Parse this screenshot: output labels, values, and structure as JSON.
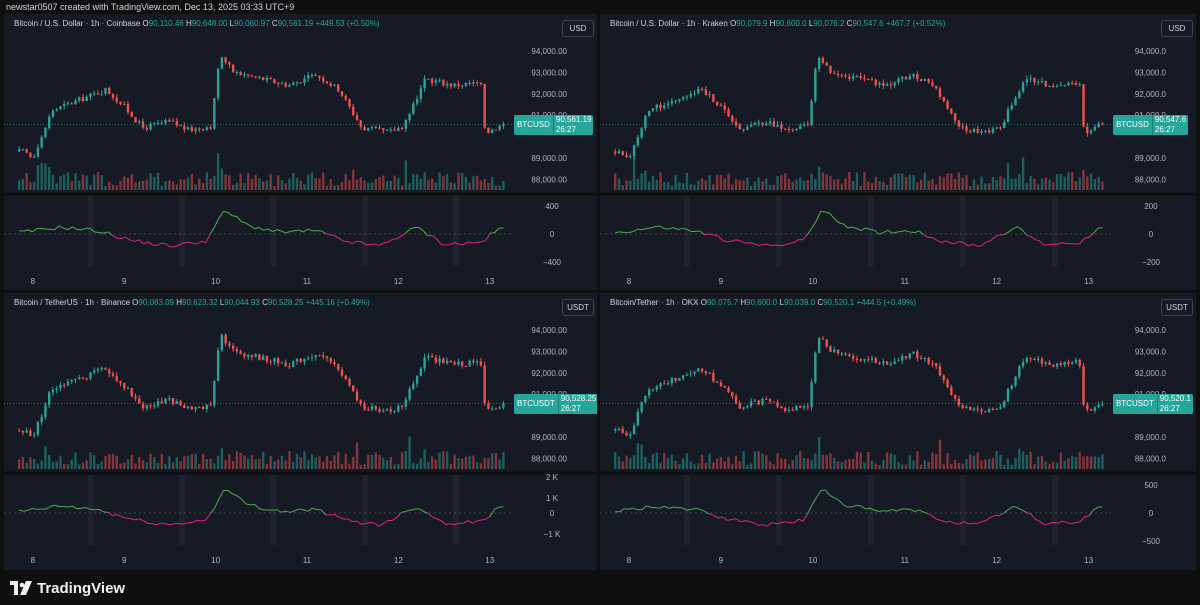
{
  "header": "newstar0507 created with TradingView.com, Dec 13, 2025 03:33 UTC+9",
  "footer": {
    "brand": "TradingView"
  },
  "colors": {
    "up": "#26a69a",
    "down": "#ef5350",
    "osc_pos": "#4caf50",
    "osc_neg": "#e91e8c",
    "background": "#161a25"
  },
  "x_axis_labels": [
    "8",
    "9",
    "10",
    "11",
    "12",
    "13"
  ],
  "panels": [
    {
      "title": "Bitcoin / U.S. Dollar · 1h · Coinbase",
      "ohlc": {
        "o_label": "O",
        "o": "90,110.46",
        "h_label": "H",
        "h": "90,648.00",
        "l_label": "L",
        "l": "90,060.97",
        "c_label": "C",
        "c": "90,561.19",
        "change": "+449.53 (+0.50%)"
      },
      "currency": "USD",
      "symbol": "BTCUSD",
      "last_price": "90,561.19",
      "countdown": "26:27",
      "price_axis": [
        "94,000.00",
        "93,000.00",
        "92,000.00",
        "91,000.00",
        "89,000.00",
        "88,000.00"
      ],
      "osc_axis": [
        "400",
        "0",
        "−400"
      ]
    },
    {
      "title": "Bitcoin / U.S. Dollar · 1h · Kraken",
      "ohlc": {
        "o_label": "O",
        "o": "90,079.9",
        "h_label": "H",
        "h": "90,600.0",
        "l_label": "L",
        "l": "90,076.2",
        "c_label": "C",
        "c": "90,547.6",
        "change": "+467.7 (+0.52%)"
      },
      "currency": "USD",
      "symbol": "BTCUSD",
      "last_price": "90,547.6",
      "countdown": "26:27",
      "price_axis": [
        "94,000.0",
        "93,000.0",
        "92,000.0",
        "91,000.0",
        "89,000.0",
        "88,000.0"
      ],
      "osc_axis": [
        "200",
        "0",
        "−200"
      ]
    },
    {
      "title": "Bitcoin / TetherUS · 1h · Binance",
      "ohlc": {
        "o_label": "O",
        "o": "90,083.09",
        "h_label": "H",
        "h": "90,623.32",
        "l_label": "L",
        "l": "90,044.93",
        "c_label": "C",
        "c": "90,528.25",
        "change": "+445.16 (+0.49%)"
      },
      "currency": "USDT",
      "symbol": "BTCUSDT",
      "last_price": "90,528.25",
      "countdown": "26:27",
      "price_axis": [
        "94,000.00",
        "93,000.00",
        "92,000.00",
        "91,000.00",
        "89,000.00",
        "88,000.00"
      ],
      "osc_axis": [
        "2 K",
        "1 K",
        "0",
        "−1 K"
      ]
    },
    {
      "title": "Bitcoin/Tether · 1h · OKX",
      "ohlc": {
        "o_label": "O",
        "o": "90,075.7",
        "h_label": "H",
        "h": "90,600.0",
        "l_label": "L",
        "l": "90,039.0",
        "c_label": "C",
        "c": "90,520.1",
        "change": "+444.5 (+0.49%)"
      },
      "currency": "USDT",
      "symbol": "BTCUSDT",
      "last_price": "90,520.1",
      "countdown": "26:27",
      "price_axis": [
        "94,000.0",
        "93,000.0",
        "92,000.0",
        "91,000.0",
        "89,000.0",
        "88,000.0"
      ],
      "osc_axis": [
        "500",
        "0",
        "−500"
      ]
    }
  ],
  "chart_data": {
    "type": "candlestick",
    "interval": "1h",
    "x_categories": [
      "8",
      "9",
      "10",
      "11",
      "12",
      "13"
    ],
    "price_ylim": [
      87500,
      94700
    ],
    "price_key_points": [
      {
        "day": 7.9,
        "price": 89300
      },
      {
        "day": 8.0,
        "price": 89000
      },
      {
        "day": 8.2,
        "price": 91200
      },
      {
        "day": 8.5,
        "price": 91700
      },
      {
        "day": 8.8,
        "price": 92200
      },
      {
        "day": 9.0,
        "price": 91400
      },
      {
        "day": 9.2,
        "price": 90400
      },
      {
        "day": 9.5,
        "price": 90700
      },
      {
        "day": 9.7,
        "price": 90300
      },
      {
        "day": 9.95,
        "price": 90500
      },
      {
        "day": 10.05,
        "price": 93800
      },
      {
        "day": 10.2,
        "price": 93000
      },
      {
        "day": 10.5,
        "price": 92700
      },
      {
        "day": 10.8,
        "price": 92400
      },
      {
        "day": 11.1,
        "price": 92900
      },
      {
        "day": 11.35,
        "price": 92200
      },
      {
        "day": 11.6,
        "price": 90400
      },
      {
        "day": 11.9,
        "price": 90200
      },
      {
        "day": 12.05,
        "price": 90500
      },
      {
        "day": 12.3,
        "price": 92700
      },
      {
        "day": 12.6,
        "price": 92400
      },
      {
        "day": 12.9,
        "price": 92500
      },
      {
        "day": 12.95,
        "price": 90200
      },
      {
        "day": 13.15,
        "price": 90560
      }
    ],
    "oscillator_key_points": [
      {
        "day": 7.9,
        "value": 0.05
      },
      {
        "day": 8.3,
        "value": 0.2
      },
      {
        "day": 8.7,
        "value": 0.1
      },
      {
        "day": 9.1,
        "value": -0.2
      },
      {
        "day": 9.5,
        "value": -0.35
      },
      {
        "day": 9.9,
        "value": -0.2
      },
      {
        "day": 10.1,
        "value": 0.7
      },
      {
        "day": 10.35,
        "value": 0.25
      },
      {
        "day": 10.7,
        "value": 0.05
      },
      {
        "day": 11.1,
        "value": 0.1
      },
      {
        "day": 11.4,
        "value": -0.2
      },
      {
        "day": 11.8,
        "value": -0.35
      },
      {
        "day": 12.2,
        "value": 0.2
      },
      {
        "day": 12.5,
        "value": -0.3
      },
      {
        "day": 12.9,
        "value": -0.25
      },
      {
        "day": 13.1,
        "value": 0.15
      }
    ]
  }
}
